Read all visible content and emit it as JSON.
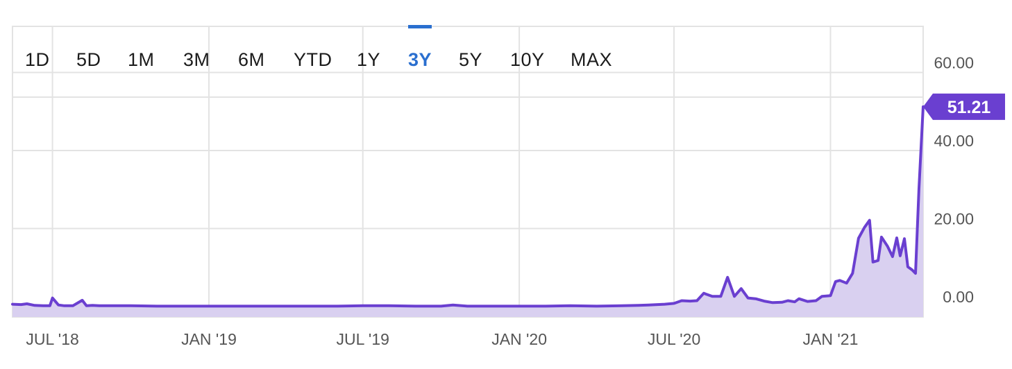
{
  "range_selector": {
    "tabs": [
      {
        "label": "1D"
      },
      {
        "label": "5D"
      },
      {
        "label": "1M"
      },
      {
        "label": "3M"
      },
      {
        "label": "6M"
      },
      {
        "label": "YTD"
      },
      {
        "label": "1Y"
      },
      {
        "label": "3Y"
      },
      {
        "label": "5Y"
      },
      {
        "label": "10Y"
      },
      {
        "label": "MAX"
      }
    ],
    "active_index": 7
  },
  "colors": {
    "line": "#6a3fd0",
    "area_fill": "#d9d0f0",
    "badge": "#6a3fd0",
    "grid": "#e3e3e3",
    "active_tab": "#2a6fcf",
    "axis_text": "#555555"
  },
  "chart_data": {
    "type": "area",
    "x_tick_labels": [
      "JUL '18",
      "JAN '19",
      "JUL '19",
      "JAN '20",
      "JUL '20",
      "JAN '21"
    ],
    "y_tick_labels": [
      "60.00",
      "40.00",
      "20.00",
      "0.00"
    ],
    "y_ticks": [
      60,
      40,
      20,
      0
    ],
    "ylim": [
      -2.5,
      64
    ],
    "xlim": [
      "2018-05-15",
      "2021-04-20"
    ],
    "last_value_label": "51.21",
    "last_value": 51.21,
    "grid": true,
    "series": [
      {
        "x": [
          "2018-05-15",
          "2018-05-25",
          "2018-06-01",
          "2018-06-10",
          "2018-06-20",
          "2018-06-28",
          "2018-07-01",
          "2018-07-08",
          "2018-07-15",
          "2018-07-25",
          "2018-08-05",
          "2018-08-10",
          "2018-08-17",
          "2018-08-25",
          "2018-09-10",
          "2018-10-01",
          "2018-11-01",
          "2018-12-01",
          "2019-01-01",
          "2019-02-01",
          "2019-03-01",
          "2019-04-01",
          "2019-05-01",
          "2019-06-01",
          "2019-07-01",
          "2019-08-01",
          "2019-09-01",
          "2019-10-01",
          "2019-10-15",
          "2019-11-01",
          "2019-12-01",
          "2020-01-01",
          "2020-02-01",
          "2020-03-01",
          "2020-04-01",
          "2020-05-01",
          "2020-05-20",
          "2020-06-01",
          "2020-06-20",
          "2020-07-01",
          "2020-07-10",
          "2020-07-20",
          "2020-07-28",
          "2020-08-05",
          "2020-08-15",
          "2020-08-25",
          "2020-09-02",
          "2020-09-10",
          "2020-09-18",
          "2020-09-26",
          "2020-10-05",
          "2020-10-15",
          "2020-10-25",
          "2020-11-05",
          "2020-11-12",
          "2020-11-20",
          "2020-11-25",
          "2020-12-05",
          "2020-12-15",
          "2020-12-22",
          "2021-01-01",
          "2021-01-07",
          "2021-01-12",
          "2021-01-20",
          "2021-01-27",
          "2021-02-03",
          "2021-02-10",
          "2021-02-16",
          "2021-02-20",
          "2021-02-26",
          "2021-03-02",
          "2021-03-09",
          "2021-03-15",
          "2021-03-20",
          "2021-03-24",
          "2021-03-29",
          "2021-04-02",
          "2021-04-07",
          "2021-04-11",
          "2021-04-15",
          "2021-04-20"
        ],
        "values": [
          0.6,
          0.5,
          0.7,
          0.3,
          0.2,
          0.2,
          2.2,
          0.4,
          0.2,
          0.2,
          1.6,
          0.2,
          0.3,
          0.2,
          0.2,
          0.2,
          0.1,
          0.1,
          0.1,
          0.1,
          0.1,
          0.1,
          0.1,
          0.1,
          0.2,
          0.2,
          0.1,
          0.1,
          0.4,
          0.1,
          0.1,
          0.1,
          0.1,
          0.2,
          0.1,
          0.2,
          0.3,
          0.4,
          0.6,
          0.8,
          1.5,
          1.4,
          1.5,
          3.4,
          2.6,
          2.6,
          7.5,
          2.6,
          4.6,
          2.2,
          2.0,
          1.4,
          1.0,
          1.1,
          1.5,
          1.2,
          2.0,
          1.3,
          1.5,
          2.6,
          2.8,
          6.4,
          6.7,
          6.0,
          8.5,
          17.5,
          20.3,
          22.1,
          11.4,
          11.8,
          17.8,
          15.5,
          12.8,
          17.6,
          13.0,
          17.4,
          10.2,
          9.4,
          8.5,
          30.0,
          51.21
        ]
      }
    ]
  }
}
